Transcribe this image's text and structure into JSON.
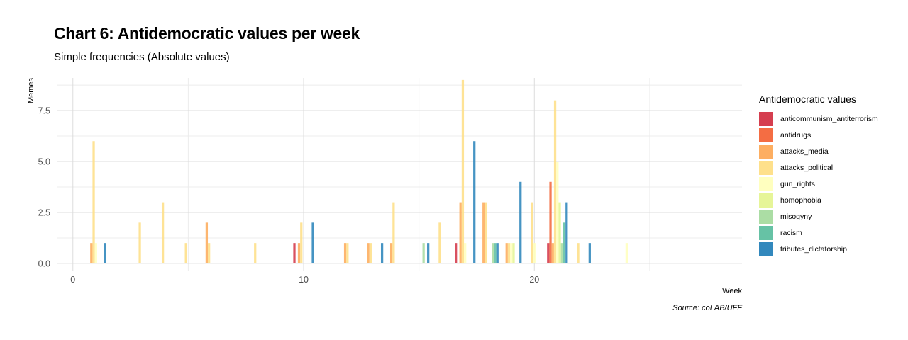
{
  "chart_data": {
    "type": "bar",
    "title": "Chart 6: Antidemocratic values per week",
    "subtitle": "Simple frequencies (Absolute values)",
    "xlabel": "Week",
    "ylabel": "Memes",
    "caption": "Source: coLAB/UFF",
    "xlim": [
      -0.7,
      29
    ],
    "ylim": [
      -0.35,
      9.1
    ],
    "x_ticks": [
      0,
      10,
      20
    ],
    "x_tick_labels": [
      "0",
      "10",
      "20"
    ],
    "y_ticks": [
      0,
      2.5,
      5,
      7.5
    ],
    "y_tick_labels": [
      "0.0",
      "2.5",
      "5.0",
      "7.5"
    ],
    "grid": true,
    "legend_title": "Antidemocratic values",
    "legend_position": "right",
    "series": [
      {
        "name": "anticommunism_antiterrorism",
        "color": "#D53E4F",
        "points": [
          [
            10,
            1
          ],
          [
            17,
            1
          ],
          [
            21,
            1
          ]
        ]
      },
      {
        "name": "antidrugs",
        "color": "#F46D43",
        "points": [
          [
            21,
            4
          ]
        ]
      },
      {
        "name": "attacks_media",
        "color": "#FDAE61",
        "points": [
          [
            1,
            1
          ],
          [
            6,
            2
          ],
          [
            10,
            1
          ],
          [
            12,
            1
          ],
          [
            13,
            1
          ],
          [
            14,
            1
          ],
          [
            17,
            3
          ],
          [
            18,
            3
          ],
          [
            19,
            1
          ],
          [
            21,
            1
          ]
        ]
      },
      {
        "name": "attacks_political",
        "color": "#FEE08B",
        "points": [
          [
            1,
            6
          ],
          [
            3,
            2
          ],
          [
            4,
            3
          ],
          [
            5,
            1
          ],
          [
            6,
            1
          ],
          [
            8,
            1
          ],
          [
            10,
            2
          ],
          [
            12,
            1
          ],
          [
            13,
            1
          ],
          [
            14,
            3
          ],
          [
            16,
            2
          ],
          [
            17,
            9
          ],
          [
            18,
            3
          ],
          [
            19,
            1
          ],
          [
            20,
            3
          ],
          [
            21,
            8
          ],
          [
            22,
            1
          ]
        ]
      },
      {
        "name": "gun_rights",
        "color": "#FFFFBF",
        "points": [
          [
            1,
            1
          ],
          [
            17,
            1
          ],
          [
            19,
            1
          ],
          [
            20,
            1
          ],
          [
            21,
            5
          ],
          [
            24,
            1
          ]
        ]
      },
      {
        "name": "homophobia",
        "color": "#E6F598",
        "points": [
          [
            19,
            1
          ],
          [
            21,
            3
          ]
        ]
      },
      {
        "name": "misogyny",
        "color": "#ABDDA4",
        "points": [
          [
            15,
            1
          ],
          [
            18,
            1
          ],
          [
            21,
            1
          ]
        ]
      },
      {
        "name": "racism",
        "color": "#66C2A5",
        "points": [
          [
            18,
            1
          ],
          [
            21,
            2
          ]
        ]
      },
      {
        "name": "tributes_dictatorship",
        "color": "#3288BD",
        "points": [
          [
            1,
            1
          ],
          [
            10,
            2
          ],
          [
            13,
            1
          ],
          [
            15,
            1
          ],
          [
            17,
            6
          ],
          [
            18,
            1
          ],
          [
            19,
            4
          ],
          [
            21,
            3
          ],
          [
            22,
            1
          ]
        ]
      }
    ]
  }
}
